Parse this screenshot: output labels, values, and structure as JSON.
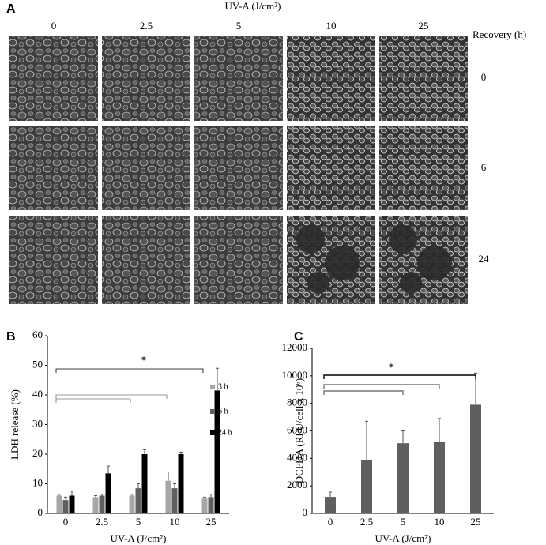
{
  "panel_a": {
    "letter": "A",
    "title": "UV-A (J/cm²)",
    "columns": [
      "0",
      "2.5",
      "5",
      "10",
      "25"
    ],
    "row_title": "Recovery (h)",
    "rows": [
      "0",
      "6",
      "24"
    ]
  },
  "chart_data": [
    {
      "type": "bar",
      "letter": "B",
      "ylabel": "LDH release (%)",
      "xlabel": "UV-A (J/cm²)",
      "annotation": "*",
      "categories": [
        "0",
        "2.5",
        "5",
        "10",
        "25"
      ],
      "series": [
        {
          "name": "3 h",
          "color": "#a6a6a6",
          "values": [
            6,
            5.5,
            6,
            11,
            5
          ],
          "errors": [
            0.5,
            0.5,
            0.5,
            3,
            0.5
          ]
        },
        {
          "name": "6 h",
          "color": "#5f5f5f",
          "values": [
            4.5,
            6,
            8.5,
            8.5,
            5.5
          ],
          "errors": [
            1,
            0.5,
            1.5,
            1.5,
            1
          ]
        },
        {
          "name": "24 h",
          "color": "#000000",
          "values": [
            6,
            13.5,
            20,
            20,
            41.5
          ],
          "errors": [
            1.5,
            2.5,
            1.5,
            0.7,
            7.5
          ]
        }
      ],
      "ylim": [
        0,
        60
      ],
      "yticks": [
        0,
        10,
        20,
        30,
        40,
        50,
        60
      ],
      "grid": false,
      "legend": "right"
    },
    {
      "type": "bar",
      "letter": "C",
      "ylabel": "DCFDA (RFU/cell x 10⁶)",
      "xlabel": "UV-A (J/cm²)",
      "annotation": "*",
      "categories": [
        "0",
        "2.5",
        "5",
        "10",
        "25"
      ],
      "series": [
        {
          "color": "#5f5f5f",
          "values": [
            1200,
            3900,
            5100,
            5200,
            7900
          ],
          "errors": [
            350,
            2800,
            900,
            1700,
            2300
          ]
        }
      ],
      "ylim": [
        0,
        12000
      ],
      "yticks": [
        0,
        2000,
        4000,
        6000,
        8000,
        10000,
        12000
      ],
      "grid": false
    }
  ]
}
